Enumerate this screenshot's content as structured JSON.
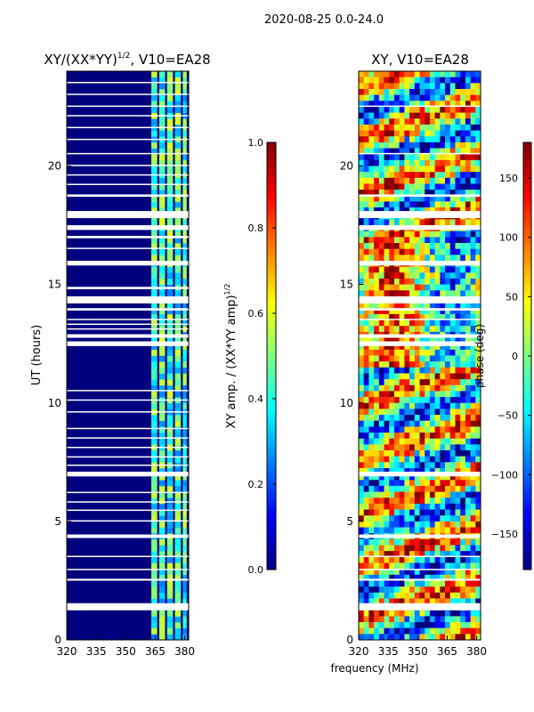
{
  "figure": {
    "suptitle": "2020-08-25 0.0-24.0"
  },
  "colors": {
    "jet": [
      "#00007f",
      "#0000ff",
      "#007fff",
      "#00ffff",
      "#7fff7f",
      "#ffff00",
      "#ff7f00",
      "#ff0000",
      "#7f0000"
    ]
  },
  "chart_data": [
    {
      "type": "heatmap",
      "id": "amp",
      "title_main": "XY/(XX*YY)",
      "title_sup": "1/2",
      "title_tail": ", V10=EA28",
      "xlabel": "",
      "ylabel": "UT (hours)",
      "xlim": [
        320,
        382
      ],
      "ylim": [
        0,
        24
      ],
      "xticks": [
        320,
        335,
        350,
        365,
        380
      ],
      "yticks": [
        0,
        5,
        10,
        15,
        20
      ],
      "flagged_hours": [
        [
          1.25,
          1.55
        ],
        [
          2.5,
          2.58
        ],
        [
          2.95,
          3.0
        ],
        [
          3.5,
          3.55
        ],
        [
          4.3,
          4.45
        ],
        [
          5.0,
          5.05
        ],
        [
          5.45,
          5.5
        ],
        [
          5.8,
          5.85
        ],
        [
          6.2,
          6.25
        ],
        [
          6.9,
          7.1
        ],
        [
          7.35,
          7.4
        ],
        [
          7.7,
          7.75
        ],
        [
          8.1,
          8.15
        ],
        [
          8.5,
          8.55
        ],
        [
          8.9,
          8.95
        ],
        [
          9.6,
          9.65
        ],
        [
          10.1,
          10.15
        ],
        [
          10.5,
          10.55
        ],
        [
          12.4,
          12.6
        ],
        [
          12.75,
          12.9
        ],
        [
          13.1,
          13.15
        ],
        [
          13.3,
          13.35
        ],
        [
          13.5,
          13.55
        ],
        [
          13.9,
          14.0
        ],
        [
          14.2,
          14.5
        ],
        [
          14.8,
          14.9
        ],
        [
          15.8,
          16.0
        ],
        [
          16.5,
          16.55
        ],
        [
          16.95,
          17.05
        ],
        [
          17.3,
          17.5
        ],
        [
          17.8,
          18.1
        ],
        [
          18.7,
          18.8
        ],
        [
          19.2,
          19.25
        ],
        [
          19.6,
          19.65
        ],
        [
          20.0,
          20.05
        ],
        [
          20.5,
          20.55
        ],
        [
          21.1,
          21.15
        ],
        [
          21.6,
          21.65
        ],
        [
          22.1,
          22.15
        ],
        [
          22.5,
          22.55
        ],
        [
          23.0,
          23.05
        ],
        [
          23.5,
          23.55
        ]
      ],
      "bright_channels_mhz": [
        [
          363,
          366
        ],
        [
          367,
          370
        ],
        [
          371,
          374
        ],
        [
          375,
          378
        ],
        [
          379,
          381
        ]
      ],
      "colorbar": {
        "label": "XY amp. / (XX*YY amp)",
        "label_sup": "1/2",
        "range": [
          0.0,
          1.0
        ],
        "ticks": [
          "0.0",
          "0.2",
          "0.4",
          "0.6",
          "0.8",
          "1.0"
        ],
        "tick_values": [
          0.0,
          0.2,
          0.4,
          0.6,
          0.8,
          1.0
        ]
      }
    },
    {
      "type": "heatmap",
      "id": "phase",
      "title_main": "XY, V10=EA28",
      "xlabel": "frequency (MHz)",
      "ylabel": "",
      "xlim": [
        320,
        382
      ],
      "ylim": [
        0,
        24
      ],
      "xticks": [
        320,
        335,
        350,
        365,
        380
      ],
      "yticks": [
        0,
        5,
        10,
        15,
        20
      ],
      "flagged_hours": [
        [
          1.25,
          1.55
        ],
        [
          2.5,
          2.58
        ],
        [
          2.95,
          3.0
        ],
        [
          3.5,
          3.55
        ],
        [
          4.3,
          4.45
        ],
        [
          6.9,
          7.1
        ],
        [
          12.4,
          12.6
        ],
        [
          12.75,
          12.9
        ],
        [
          13.5,
          13.55
        ],
        [
          13.9,
          14.0
        ],
        [
          14.2,
          14.5
        ],
        [
          15.8,
          16.0
        ],
        [
          17.3,
          17.5
        ],
        [
          17.8,
          18.1
        ],
        [
          18.7,
          18.8
        ],
        [
          20.5,
          20.55
        ],
        [
          22.5,
          22.55
        ]
      ],
      "colorbar": {
        "label": "phase (deg)",
        "range": [
          -180,
          180
        ],
        "ticks": [
          "−150",
          "−100",
          "−50",
          "0",
          "50",
          "100",
          "150"
        ],
        "tick_values": [
          -150,
          -100,
          -50,
          0,
          50,
          100,
          150
        ]
      }
    }
  ]
}
